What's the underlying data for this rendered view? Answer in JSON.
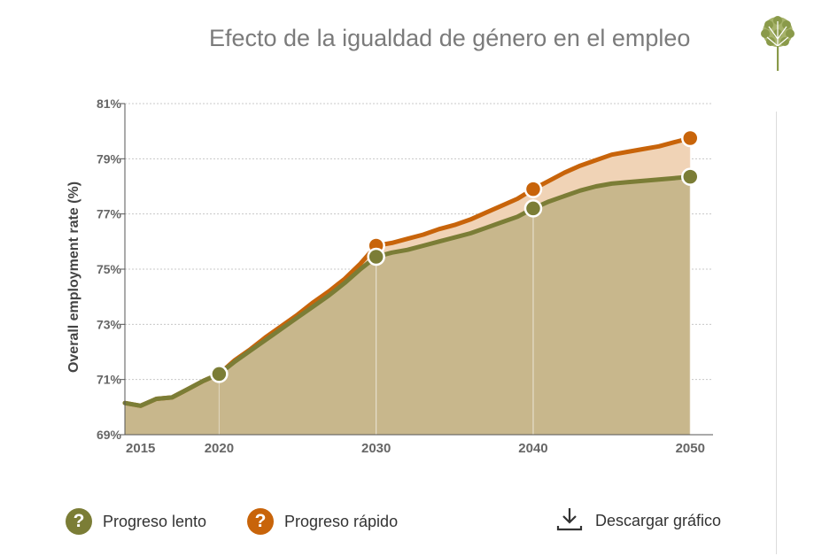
{
  "header": {
    "title": "Efecto de la igualdad de género en el empleo"
  },
  "chart_data": {
    "type": "area",
    "title": "Efecto de la igualdad de género en el empleo",
    "ylabel": "Overall employment rate (%)",
    "xlim": [
      2014,
      2051
    ],
    "ylim": [
      69,
      81
    ],
    "yticks": [
      69,
      71,
      73,
      75,
      77,
      79,
      81
    ],
    "ytick_labels": [
      "69%",
      "71%",
      "73%",
      "75%",
      "77%",
      "79%",
      "81%"
    ],
    "xticks": [
      2015,
      2020,
      2030,
      2040,
      2050
    ],
    "xtick_labels": [
      "2015",
      "2020",
      "2030",
      "2040",
      "2050"
    ],
    "grid": true,
    "series": [
      {
        "name": "Progreso lento",
        "color": "#7b7d36",
        "fill": "#c8b78c",
        "x": [
          2014,
          2015,
          2016,
          2017,
          2018,
          2019,
          2020,
          2021,
          2022,
          2023,
          2024,
          2025,
          2026,
          2027,
          2028,
          2029,
          2030,
          2031,
          2032,
          2033,
          2034,
          2035,
          2036,
          2037,
          2038,
          2039,
          2040,
          2041,
          2042,
          2043,
          2044,
          2045,
          2046,
          2047,
          2048,
          2049,
          2050
        ],
        "y": [
          70.15,
          70.05,
          70.3,
          70.35,
          70.65,
          70.95,
          71.2,
          71.65,
          72.05,
          72.45,
          72.85,
          73.25,
          73.65,
          74.05,
          74.5,
          75.0,
          75.45,
          75.6,
          75.7,
          75.85,
          76.0,
          76.15,
          76.3,
          76.5,
          76.7,
          76.9,
          77.2,
          77.45,
          77.65,
          77.85,
          78.0,
          78.1,
          78.15,
          78.2,
          78.25,
          78.3,
          78.35
        ],
        "markers": [
          [
            2020,
            71.2
          ],
          [
            2030,
            75.45
          ],
          [
            2040,
            77.2
          ],
          [
            2050,
            78.35
          ]
        ]
      },
      {
        "name": "Progreso rápido",
        "color": "#c8640a",
        "fill": "#f0d3b6",
        "x": [
          2014,
          2015,
          2016,
          2017,
          2018,
          2019,
          2020,
          2021,
          2022,
          2023,
          2024,
          2025,
          2026,
          2027,
          2028,
          2029,
          2030,
          2031,
          2032,
          2033,
          2034,
          2035,
          2036,
          2037,
          2038,
          2039,
          2040,
          2041,
          2042,
          2043,
          2044,
          2045,
          2046,
          2047,
          2048,
          2049,
          2050
        ],
        "y": [
          70.15,
          70.05,
          70.3,
          70.35,
          70.65,
          70.95,
          71.2,
          71.7,
          72.1,
          72.55,
          72.95,
          73.35,
          73.8,
          74.2,
          74.65,
          75.2,
          75.85,
          75.95,
          76.1,
          76.25,
          76.45,
          76.6,
          76.8,
          77.05,
          77.3,
          77.55,
          77.9,
          78.2,
          78.5,
          78.75,
          78.95,
          79.15,
          79.25,
          79.35,
          79.45,
          79.6,
          79.75
        ],
        "markers": [
          [
            2030,
            75.85
          ],
          [
            2040,
            77.9
          ],
          [
            2050,
            79.75
          ]
        ]
      }
    ]
  },
  "legend": {
    "items": [
      {
        "label": "Progreso lento",
        "icon": "question-icon",
        "glyph": "?",
        "color": "#7b7d36"
      },
      {
        "label": "Progreso rápido",
        "icon": "question-icon",
        "glyph": "?",
        "color": "#c8640a"
      }
    ]
  },
  "download": {
    "label": "Descargar gráfico",
    "icon": "download-icon"
  },
  "logo": {
    "icon": "tree-logo-icon",
    "color": "#8a9a4a"
  }
}
